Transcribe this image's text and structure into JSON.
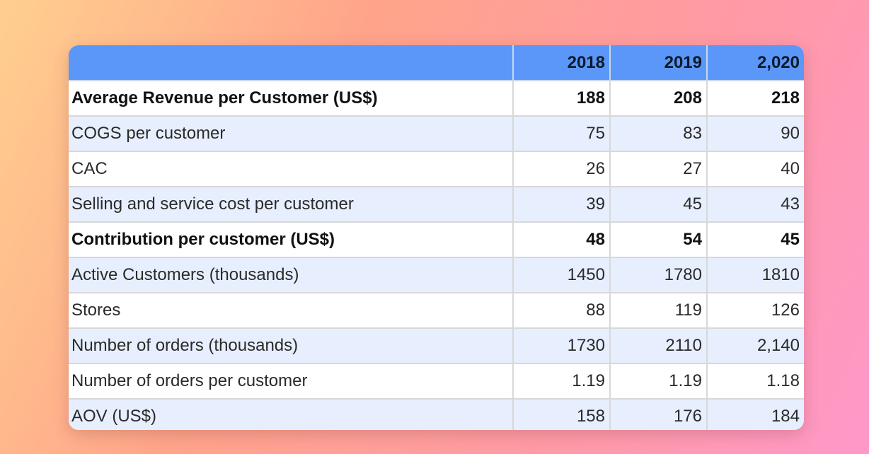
{
  "table": {
    "header": [
      "",
      "2018",
      "2019",
      "2,020"
    ],
    "rows": [
      {
        "label": "Average Revenue per Customer (US$)",
        "values": [
          "188",
          "208",
          "218"
        ],
        "bold": true
      },
      {
        "label": "COGS per customer",
        "values": [
          "75",
          "83",
          "90"
        ],
        "bold": false
      },
      {
        "label": "CAC",
        "values": [
          "26",
          "27",
          "40"
        ],
        "bold": false
      },
      {
        "label": "Selling and service cost per customer",
        "values": [
          "39",
          "45",
          "43"
        ],
        "bold": false
      },
      {
        "label": "Contribution per customer (US$)",
        "values": [
          "48",
          "54",
          "45"
        ],
        "bold": true
      },
      {
        "label": "Active Customers (thousands)",
        "values": [
          "1450",
          "1780",
          "1810"
        ],
        "bold": false
      },
      {
        "label": "Stores",
        "values": [
          "88",
          "119",
          "126"
        ],
        "bold": false
      },
      {
        "label": "Number of orders (thousands)",
        "values": [
          "1730",
          "2110",
          "2,140"
        ],
        "bold": false
      },
      {
        "label": "Number of orders per customer",
        "values": [
          "1.19",
          "1.19",
          "1.18"
        ],
        "bold": false
      },
      {
        "label": "AOV (US$)",
        "values": [
          "158",
          "176",
          "184"
        ],
        "bold": false
      }
    ]
  },
  "colors": {
    "header_bg": "#5b97f9",
    "alt_row_bg": "#e7efff"
  }
}
